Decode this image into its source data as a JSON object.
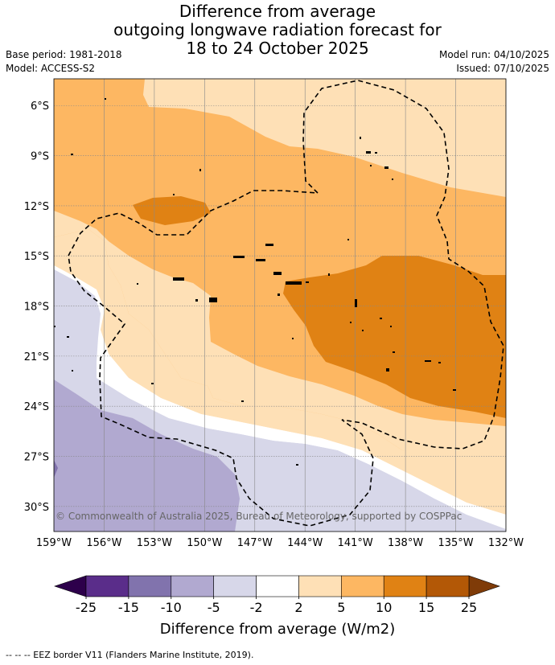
{
  "title": {
    "line1": "Difference from average",
    "line2": "outgoing longwave radiation forecast for",
    "line3": "18 to 24 October 2025"
  },
  "meta": {
    "base_period": "Base period: 1981-2018",
    "model": "Model: ACCESS-S2",
    "model_run": "Model run: 04/10/2025",
    "issued": "Issued: 07/10/2025"
  },
  "map": {
    "copyright": "© Commonwealth of Australia 2025, Bureau of Meteorology, supported by COSPPac",
    "lat_labels": [
      "6°S",
      "9°S",
      "12°S",
      "15°S",
      "18°S",
      "21°S",
      "24°S",
      "27°S",
      "30°S"
    ],
    "lon_labels": [
      "159°W",
      "156°W",
      "153°W",
      "150°W",
      "147°W",
      "144°W",
      "141°W",
      "138°W",
      "135°W",
      "132°W"
    ],
    "lat_values": [
      -6,
      -9,
      -12,
      -15,
      -18,
      -21,
      -24,
      -27,
      -30
    ],
    "lon_values": [
      -159,
      -156,
      -153,
      -150,
      -147,
      -144,
      -141,
      -138,
      -135,
      -132
    ],
    "extent": {
      "lon_min": -159,
      "lon_max": -132,
      "lat_max": -4.4,
      "lat_min": -31.5
    }
  },
  "colorbar": {
    "ticks": [
      "-25",
      "-15",
      "-10",
      "-5",
      "-2",
      "2",
      "5",
      "10",
      "15",
      "25"
    ],
    "colors": [
      "#5a2d8a",
      "#8173ad",
      "#b1a9d0",
      "#d7d7e9",
      "#ffffff",
      "#fee0b6",
      "#fdb762",
      "#e08214",
      "#b35806"
    ],
    "under_color": "#2d004b",
    "over_color": "#7f3b08",
    "label": "Difference from average (W/m2)"
  },
  "footer": {
    "legend": "--  --  -- EEZ border V11 (Flanders Marine Institute, 2019)."
  }
}
